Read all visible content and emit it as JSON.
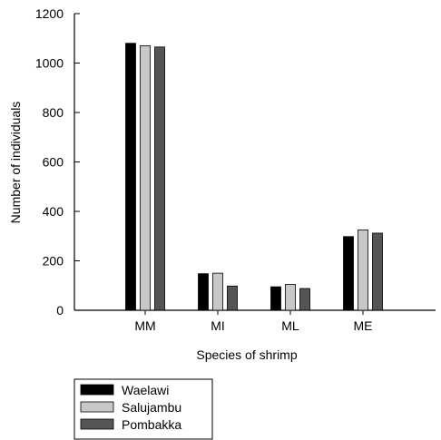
{
  "chart_data": {
    "type": "bar",
    "categories": [
      "MM",
      "MI",
      "ML",
      "ME"
    ],
    "series": [
      {
        "name": "Waelawi",
        "values": [
          1080,
          148,
          95,
          298
        ],
        "color": "#000000"
      },
      {
        "name": "Salujambu",
        "values": [
          1070,
          150,
          105,
          325
        ],
        "color": "#c8c8c8"
      },
      {
        "name": "Pombakka",
        "values": [
          1065,
          98,
          88,
          312
        ],
        "color": "#555555"
      }
    ],
    "xlabel": "Species of shrimp",
    "ylabel": "Number of individuals",
    "ylim": [
      0,
      1200
    ],
    "yticks": [
      0,
      200,
      400,
      600,
      800,
      1000,
      1200
    ],
    "grid": false,
    "legend_position": "bottom-left, below plot"
  }
}
